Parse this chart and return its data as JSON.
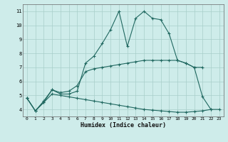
{
  "xlabel": "Humidex (Indice chaleur)",
  "background_color": "#ceecea",
  "grid_color": "#a8ceca",
  "line_color": "#206860",
  "xlim": [
    -0.5,
    23.5
  ],
  "ylim": [
    3.5,
    11.5
  ],
  "xticks": [
    0,
    1,
    2,
    3,
    4,
    5,
    6,
    7,
    8,
    9,
    10,
    11,
    12,
    13,
    14,
    15,
    16,
    17,
    18,
    19,
    20,
    21,
    22,
    23
  ],
  "yticks": [
    4,
    5,
    6,
    7,
    8,
    9,
    10,
    11
  ],
  "series1_x": [
    0,
    1,
    2,
    3,
    4,
    5,
    6,
    7,
    8,
    9,
    10,
    11,
    12,
    13,
    14,
    15,
    16,
    17,
    18,
    19,
    20,
    21,
    22
  ],
  "series1_y": [
    4.8,
    3.9,
    4.5,
    5.4,
    5.1,
    5.1,
    5.3,
    7.3,
    7.8,
    8.7,
    9.7,
    11.0,
    8.5,
    10.5,
    11.0,
    10.5,
    10.4,
    9.4,
    7.5,
    7.3,
    7.0,
    4.9,
    4.0
  ],
  "series2_x": [
    0,
    1,
    2,
    3,
    4,
    5,
    6,
    7,
    8,
    9,
    10,
    11,
    12,
    13,
    14,
    15,
    16,
    17,
    18,
    19,
    20,
    21
  ],
  "series2_y": [
    4.8,
    3.9,
    4.6,
    5.4,
    5.2,
    5.3,
    5.7,
    6.7,
    6.9,
    7.0,
    7.1,
    7.2,
    7.3,
    7.4,
    7.5,
    7.5,
    7.5,
    7.5,
    7.5,
    7.3,
    7.0,
    7.0
  ],
  "series3_x": [
    0,
    1,
    2,
    3,
    4,
    5,
    6,
    7,
    8,
    9,
    10,
    11,
    12,
    13,
    14,
    15,
    16,
    17,
    18,
    19,
    20,
    21,
    22,
    23
  ],
  "series3_y": [
    4.8,
    3.9,
    4.5,
    5.1,
    5.0,
    4.9,
    4.8,
    4.7,
    4.6,
    4.5,
    4.4,
    4.3,
    4.2,
    4.1,
    4.0,
    3.95,
    3.9,
    3.85,
    3.8,
    3.8,
    3.85,
    3.9,
    4.0,
    4.0
  ]
}
